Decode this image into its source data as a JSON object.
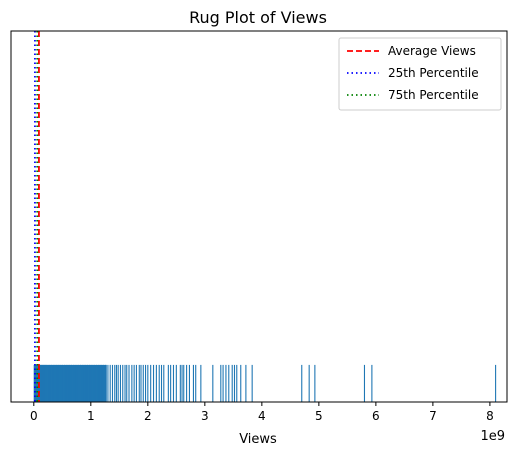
{
  "chart_data": {
    "type": "rug",
    "title": "Rug Plot of Views",
    "xlabel": "Views",
    "ylabel": "",
    "x_offset_label": "1e9",
    "x_scale": 1000000000,
    "xlim": [
      -0.4,
      8.3
    ],
    "ylim": [
      0,
      1
    ],
    "x_ticks": [
      0,
      1,
      2,
      3,
      4,
      5,
      6,
      7,
      8
    ],
    "x_tick_labels": [
      "0",
      "1",
      "2",
      "3",
      "4",
      "5",
      "6",
      "7",
      "8"
    ],
    "y_ticks": [],
    "grid": false,
    "legend_position": "upper right",
    "rug": {
      "color": "#1f77b4",
      "height": 0.1,
      "values": [
        0.01,
        0.02,
        0.03,
        0.04,
        0.05,
        0.06,
        0.07,
        0.08,
        0.09,
        0.1,
        0.12,
        0.14,
        0.16,
        0.18,
        0.2,
        0.22,
        0.25,
        0.28,
        0.31,
        0.34,
        0.37,
        0.4,
        0.43,
        0.46,
        0.5,
        0.54,
        0.58,
        0.62,
        0.66,
        0.7,
        0.74,
        0.78,
        0.82,
        0.86,
        0.9,
        0.94,
        0.98,
        1.02,
        1.06,
        1.1,
        1.14,
        1.18,
        1.22,
        1.26,
        1.3,
        1.34,
        1.38,
        1.42,
        1.45,
        1.48,
        1.52,
        1.56,
        1.6,
        1.63,
        1.67,
        1.72,
        1.76,
        1.8,
        1.85,
        1.88,
        1.92,
        1.96,
        2.0,
        2.05,
        2.1,
        2.15,
        2.2,
        2.24,
        2.28,
        2.36,
        2.4,
        2.45,
        2.5,
        2.57,
        2.6,
        2.63,
        2.68,
        2.73,
        2.8,
        2.84,
        2.93,
        3.14,
        3.28,
        3.32,
        3.37,
        3.42,
        3.48,
        3.52,
        3.56,
        3.63,
        3.72,
        3.83,
        4.7,
        4.83,
        4.93,
        5.8,
        5.93,
        8.1
      ]
    },
    "reference_lines": [
      {
        "name": "Average Views",
        "value": 0.09,
        "color": "#ff0000",
        "style": "dashed"
      },
      {
        "name": "25th Percentile",
        "value": 0.02,
        "color": "#0000ff",
        "style": "dotted"
      },
      {
        "name": "75th Percentile",
        "value": 0.06,
        "color": "#008000",
        "style": "dotted"
      }
    ],
    "legend": [
      {
        "name": "Average Views",
        "color": "#ff0000",
        "style": "dashed"
      },
      {
        "name": "25th Percentile",
        "color": "#0000ff",
        "style": "dotted"
      },
      {
        "name": "75th Percentile",
        "color": "#008000",
        "style": "dotted"
      }
    ]
  }
}
